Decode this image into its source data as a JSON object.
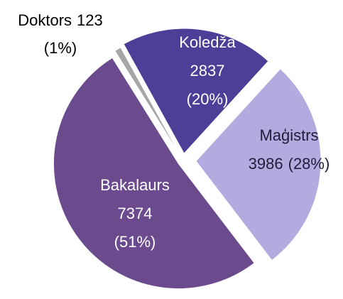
{
  "chart_data": {
    "type": "pie",
    "categories": [
      "Doktors",
      "Koledža",
      "Maģistrs",
      "Bakalaurs"
    ],
    "values": [
      123,
      2837,
      3986,
      7374
    ],
    "percent_labels": [
      "(1%)",
      "(20%)",
      "(28%)",
      "(51%)"
    ],
    "colors": [
      "#a6a6a6",
      "#4b3f97",
      "#b1abdf",
      "#6b4a8e"
    ]
  }
}
